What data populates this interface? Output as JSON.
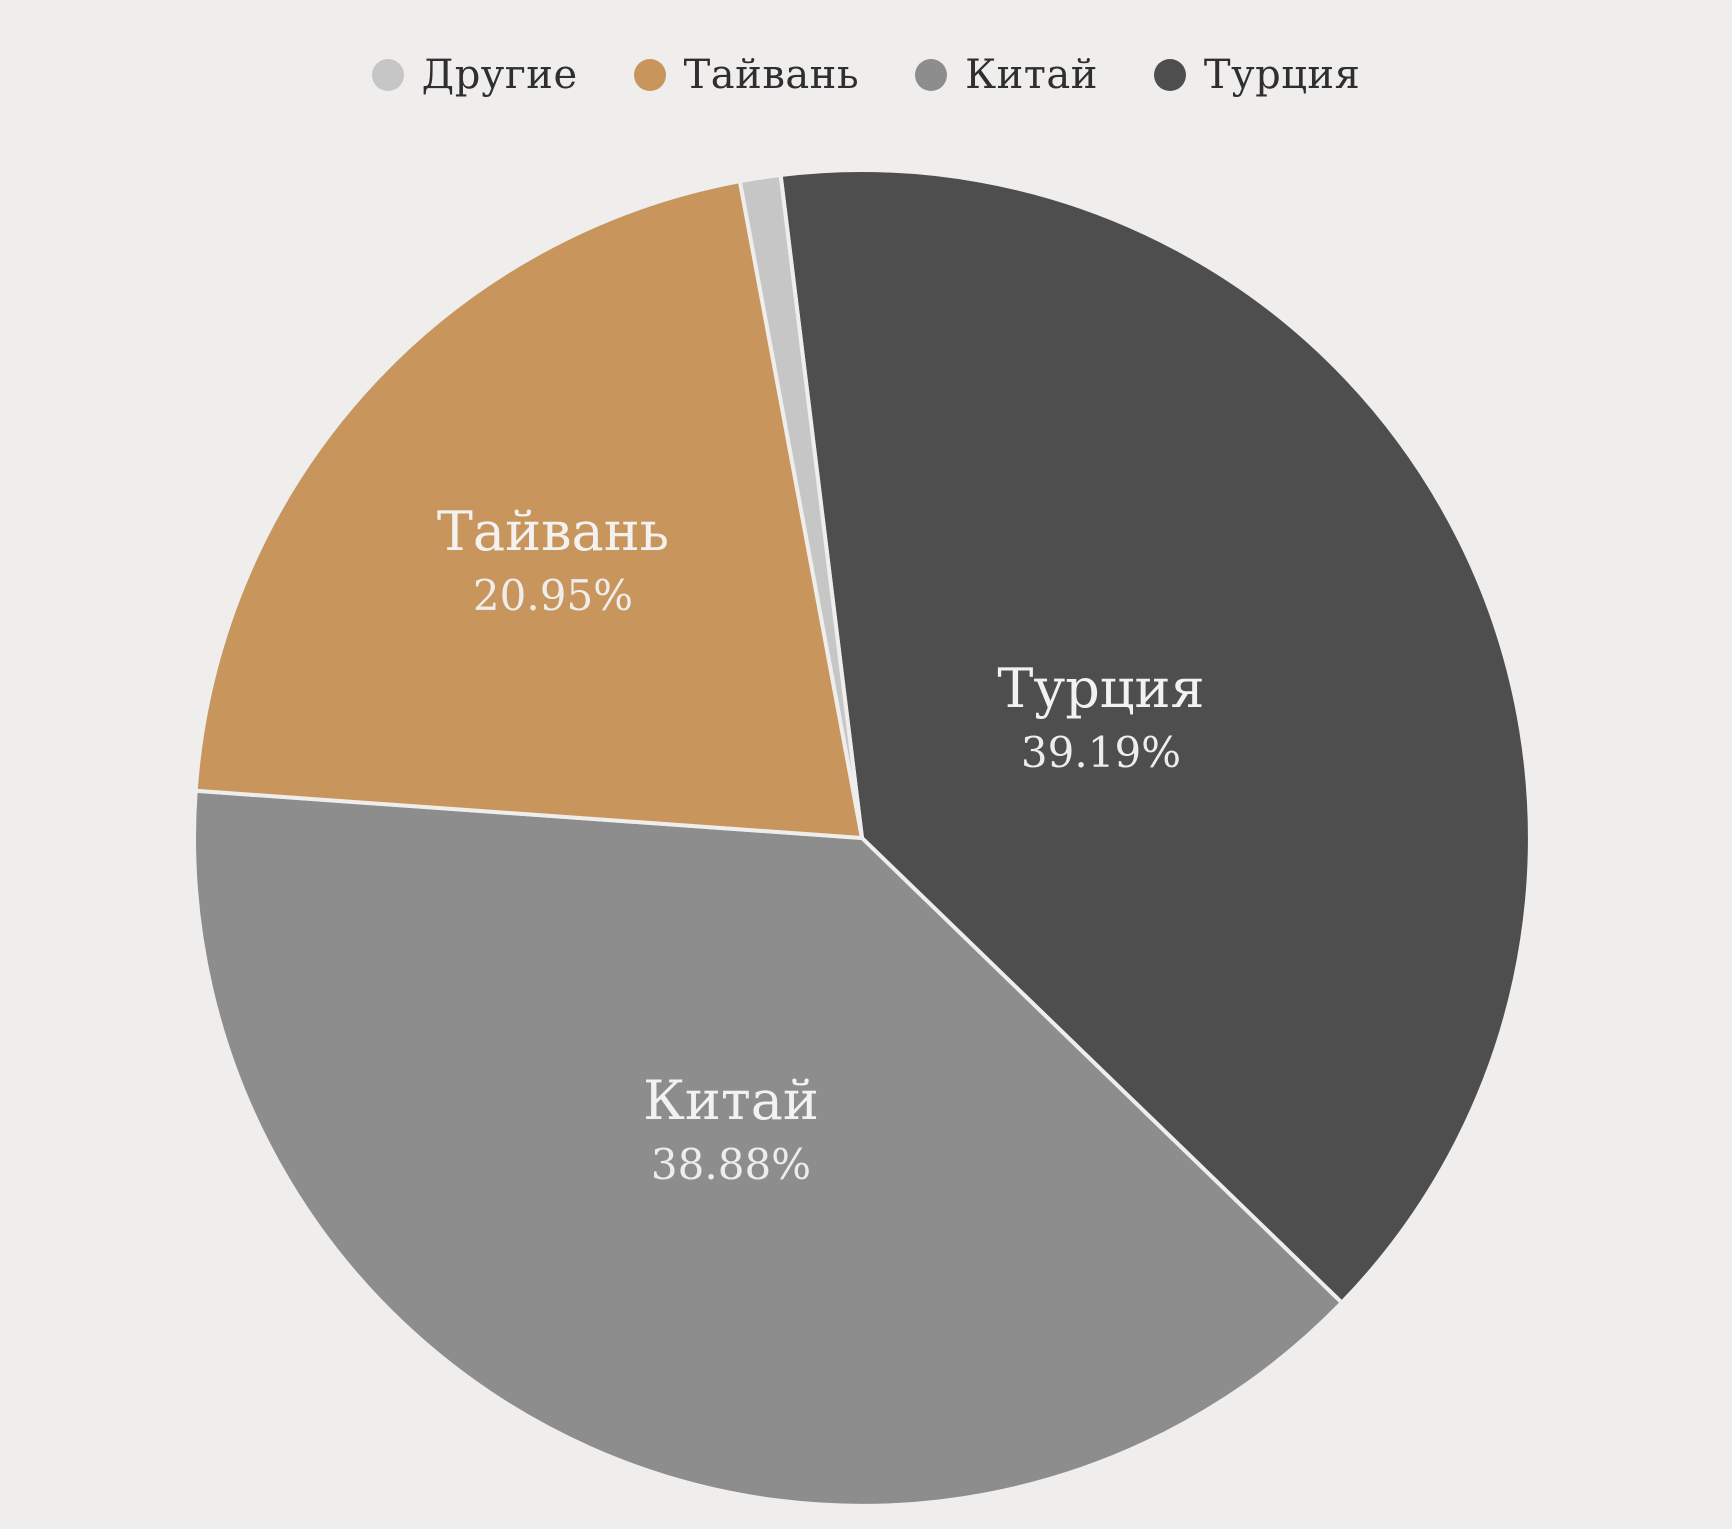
{
  "page": {
    "background_color": "#efeeed"
  },
  "chart_data": {
    "type": "pie",
    "title": "",
    "legend_position": "top",
    "direction": "clockwise",
    "start_angle_deg": -7,
    "min_label_pct": 5,
    "label_radius_frac": [
      0.4,
      0.48,
      0.62,
      0.5
    ],
    "label_text_color": "#f3f2f1",
    "separator_color": "#efeeed",
    "slices": [
      {
        "label": "Турция",
        "value": 39.19,
        "display": "39.19%",
        "color": "#4e4e4e"
      },
      {
        "label": "Китай",
        "value": 38.88,
        "display": "38.88%",
        "color": "#8d8d8d"
      },
      {
        "label": "Тайвань",
        "value": 20.95,
        "display": "20.95%",
        "color": "#c8965c"
      },
      {
        "label": "Другие",
        "value": 0.98,
        "display": "0.98%",
        "color": "#c6c6c6"
      }
    ],
    "legend": [
      {
        "label": "Другие",
        "color": "#c6c6c6"
      },
      {
        "label": "Тайвань",
        "color": "#c8965c"
      },
      {
        "label": "Китай",
        "color": "#8d8d8d"
      },
      {
        "label": "Турция",
        "color": "#4e4e4e"
      }
    ]
  }
}
